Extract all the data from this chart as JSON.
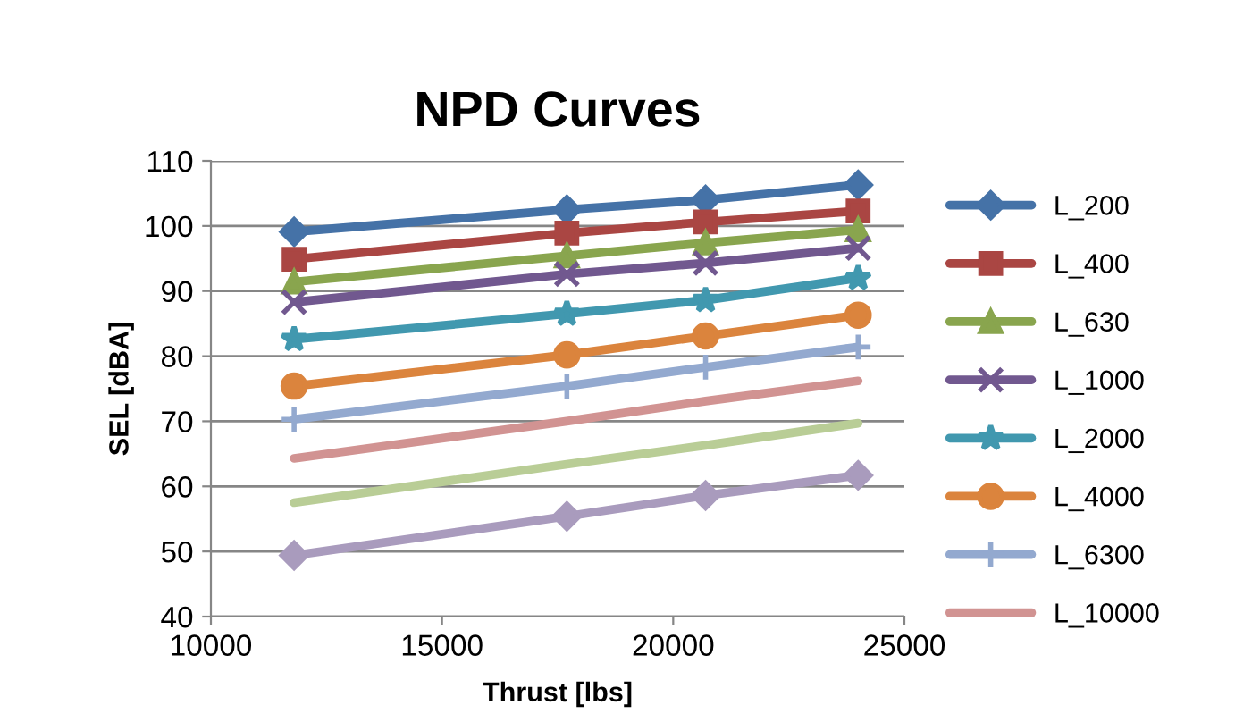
{
  "chart_data": {
    "type": "line",
    "title": "NPD Curves",
    "xlabel": "Thrust [lbs]",
    "ylabel": "SEL [dBA]",
    "x": [
      11800,
      17700,
      20700,
      24000
    ],
    "series": [
      {
        "name": "L_200",
        "color": "#4572a7",
        "marker": "diamond",
        "values": [
          99.1,
          102.5,
          104,
          106.3
        ]
      },
      {
        "name": "L_400",
        "color": "#aa4643",
        "marker": "square",
        "values": [
          94.9,
          98.9,
          100.6,
          102.3
        ]
      },
      {
        "name": "L_630",
        "color": "#89a54e",
        "marker": "triangle",
        "values": [
          91.4,
          95.4,
          97.4,
          99.4
        ]
      },
      {
        "name": "L_1000",
        "color": "#71588f",
        "marker": "cross",
        "values": [
          88.3,
          92.6,
          94.3,
          96.6
        ]
      },
      {
        "name": "L_2000",
        "color": "#4198af",
        "marker": "star",
        "values": [
          82.6,
          86.5,
          88.6,
          92
        ]
      },
      {
        "name": "L_4000",
        "color": "#db843d",
        "marker": "circle",
        "values": [
          75.4,
          80.2,
          83.1,
          86.3
        ]
      },
      {
        "name": "L_6300",
        "color": "#93a9cf",
        "marker": "plus",
        "values": [
          70.3,
          75.4,
          78.3,
          81.4
        ]
      },
      {
        "name": "L_10000",
        "color": "#d19392",
        "marker": "none",
        "values": [
          64.3,
          70,
          73.1,
          76.2
        ]
      },
      {
        "color": "#b9cd96",
        "marker": "none",
        "values": [
          57.5,
          63.4,
          66.3,
          69.7
        ]
      },
      {
        "color": "#a99bbd",
        "marker": "diamond",
        "values": [
          49.4,
          55.4,
          58.6,
          61.7
        ]
      }
    ],
    "xlim": [
      10000,
      25000
    ],
    "xticks": [
      10000,
      15000,
      20000,
      25000
    ],
    "ylim": [
      40,
      110
    ],
    "yticks": [
      40,
      50,
      60,
      70,
      80,
      90,
      100,
      110
    ],
    "grid": "y",
    "legend": "right"
  }
}
